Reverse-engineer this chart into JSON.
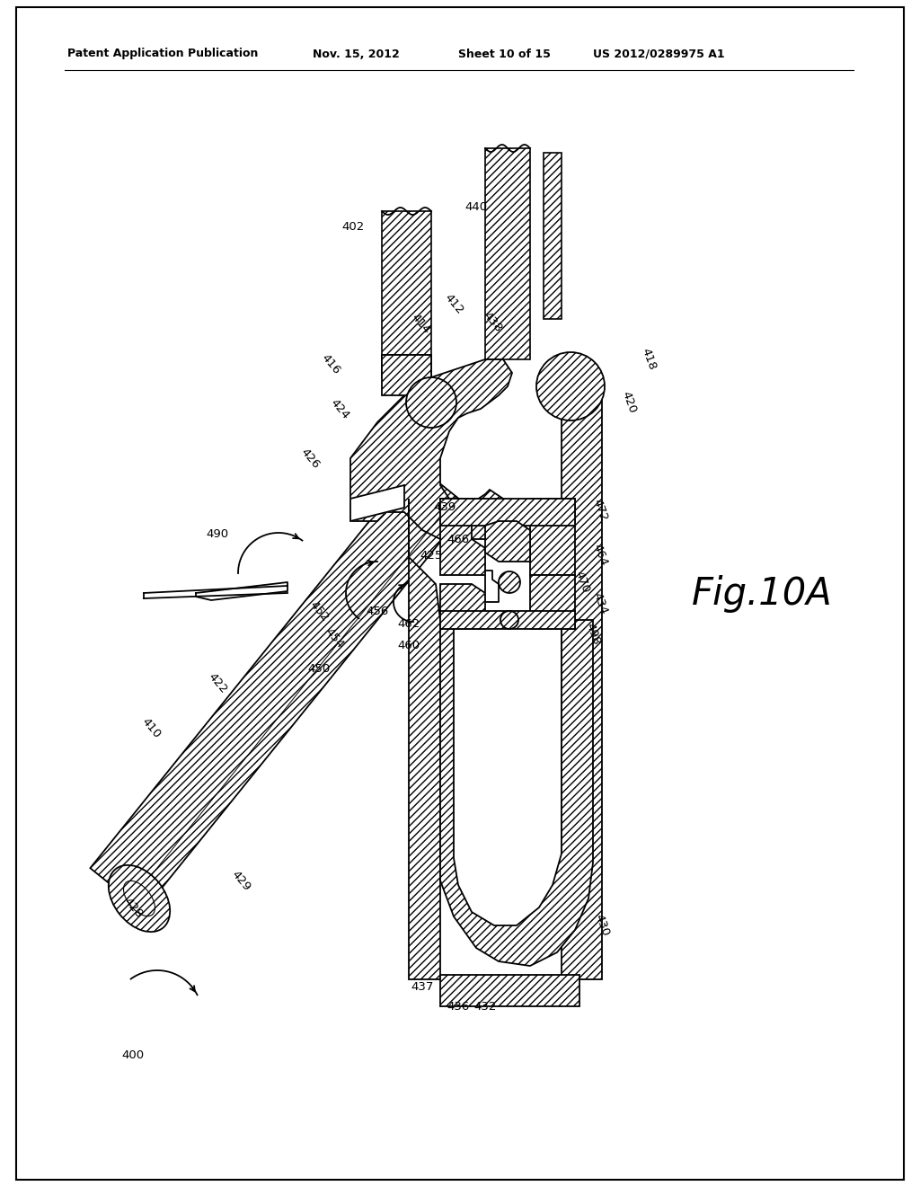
{
  "background": "#ffffff",
  "line_color": "#000000",
  "header_left": "Patent Application Publication",
  "header_mid": "Nov. 15, 2012  Sheet 10 of 15",
  "header_right": "US 2012/0289975 A1",
  "fig_label": "Fig.10A",
  "lw": 1.3
}
